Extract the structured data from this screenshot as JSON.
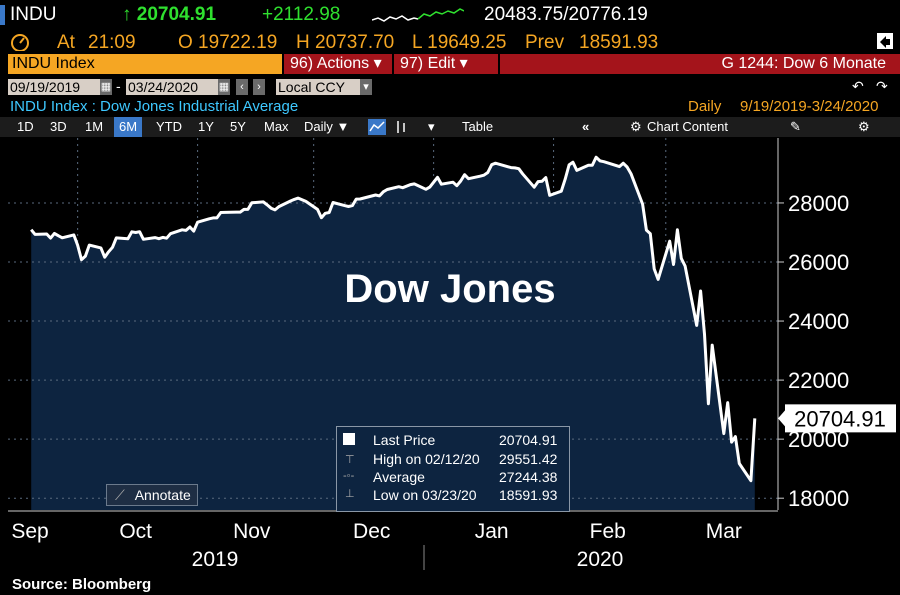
{
  "header": {
    "ticker": "INDU",
    "last": "↑ 20704.91",
    "change": "+2112.98",
    "range": "20483.75/20776.19",
    "at_label": "At",
    "time": "21:09",
    "open": "O 19722.19",
    "high": "H 20737.70",
    "low": "L 19649.25",
    "prev_label": "Prev",
    "prev": "18591.93"
  },
  "toolbar": {
    "index_label": "INDU Index",
    "actions": "96) Actions ▾",
    "edit": "97) Edit ▾",
    "page": "G 1244: Dow 6 Monate"
  },
  "dates": {
    "start": "09/19/2019",
    "sep": "-",
    "end": "03/24/2020",
    "currency": "Local CCY"
  },
  "info": {
    "title": "INDU Index : Dow Jones Industrial Average",
    "period_label": "Daily",
    "period_range": "9/19/2019-3/24/2020"
  },
  "tabs": [
    "1D",
    "3D",
    "1M",
    "6M",
    "YTD",
    "1Y",
    "5Y",
    "Max",
    "Daily ▼"
  ],
  "tab_table": "Table",
  "tab_chart_content": "Chart Content",
  "legend": {
    "rows": [
      {
        "label": "Last Price",
        "value": "20704.91"
      },
      {
        "label": "High on 02/12/20",
        "value": "29551.42"
      },
      {
        "label": "Average",
        "value": "27244.38"
      },
      {
        "label": "Low on 03/23/20",
        "value": "18591.93"
      }
    ]
  },
  "annotate_label": "Annotate",
  "source": "Source: Bloomberg",
  "colors": {
    "accent_orange": "#f5a623",
    "red_bar": "#a4141b",
    "chart_fill": "#0d2440",
    "positive": "#2fe02f",
    "info_cyan": "#3ec8ff"
  },
  "chart_data": {
    "type": "area",
    "title": "Dow Jones",
    "ylim": [
      17600,
      30200
    ],
    "yticks": [
      18000,
      20000,
      22000,
      24000,
      26000,
      28000
    ],
    "last_value_label": "20704.91",
    "x_months": [
      "Sep",
      "Oct",
      "Nov",
      "Dec",
      "Jan",
      "Feb",
      "Mar"
    ],
    "x_years": [
      "2019",
      "2020"
    ],
    "x": [
      "2019-09-19",
      "2019-09-20",
      "2019-09-23",
      "2019-09-24",
      "2019-09-25",
      "2019-09-26",
      "2019-09-27",
      "2019-09-30",
      "2019-10-01",
      "2019-10-02",
      "2019-10-03",
      "2019-10-04",
      "2019-10-07",
      "2019-10-08",
      "2019-10-09",
      "2019-10-10",
      "2019-10-11",
      "2019-10-14",
      "2019-10-15",
      "2019-10-16",
      "2019-10-17",
      "2019-10-18",
      "2019-10-21",
      "2019-10-22",
      "2019-10-23",
      "2019-10-24",
      "2019-10-25",
      "2019-10-28",
      "2019-10-29",
      "2019-10-30",
      "2019-10-31",
      "2019-11-01",
      "2019-11-04",
      "2019-11-05",
      "2019-11-06",
      "2019-11-07",
      "2019-11-08",
      "2019-11-11",
      "2019-11-12",
      "2019-11-13",
      "2019-11-14",
      "2019-11-15",
      "2019-11-18",
      "2019-11-19",
      "2019-11-20",
      "2019-11-21",
      "2019-11-22",
      "2019-11-25",
      "2019-11-26",
      "2019-11-27",
      "2019-11-29",
      "2019-12-02",
      "2019-12-03",
      "2019-12-04",
      "2019-12-05",
      "2019-12-06",
      "2019-12-09",
      "2019-12-10",
      "2019-12-11",
      "2019-12-12",
      "2019-12-13",
      "2019-12-16",
      "2019-12-17",
      "2019-12-18",
      "2019-12-19",
      "2019-12-20",
      "2019-12-23",
      "2019-12-24",
      "2019-12-26",
      "2019-12-27",
      "2019-12-30",
      "2019-12-31",
      "2020-01-02",
      "2020-01-03",
      "2020-01-06",
      "2020-01-07",
      "2020-01-08",
      "2020-01-09",
      "2020-01-10",
      "2020-01-13",
      "2020-01-14",
      "2020-01-15",
      "2020-01-16",
      "2020-01-17",
      "2020-01-21",
      "2020-01-22",
      "2020-01-23",
      "2020-01-24",
      "2020-01-27",
      "2020-01-28",
      "2020-01-29",
      "2020-01-30",
      "2020-01-31",
      "2020-02-03",
      "2020-02-04",
      "2020-02-05",
      "2020-02-06",
      "2020-02-07",
      "2020-02-10",
      "2020-02-11",
      "2020-02-12",
      "2020-02-13",
      "2020-02-14",
      "2020-02-18",
      "2020-02-19",
      "2020-02-20",
      "2020-02-21",
      "2020-02-24",
      "2020-02-25",
      "2020-02-26",
      "2020-02-27",
      "2020-02-28",
      "2020-03-02",
      "2020-03-03",
      "2020-03-04",
      "2020-03-05",
      "2020-03-06",
      "2020-03-09",
      "2020-03-10",
      "2020-03-11",
      "2020-03-12",
      "2020-03-13",
      "2020-03-16",
      "2020-03-17",
      "2020-03-18",
      "2020-03-19",
      "2020-03-20",
      "2020-03-23",
      "2020-03-24"
    ],
    "series": [
      {
        "values": [
          27094,
          26935,
          26950,
          26808,
          26970,
          26891,
          26820,
          26917,
          26573,
          26078,
          26201,
          26573,
          26478,
          26164,
          26347,
          26497,
          26817,
          26787,
          27024,
          26999,
          27025,
          26770,
          26828,
          26788,
          26834,
          26806,
          26958,
          27091,
          27071,
          27186,
          27046,
          27347,
          27462,
          27493,
          27493,
          27675,
          27681,
          27691,
          27691,
          27783,
          27782,
          28005,
          28036,
          27934,
          27821,
          27766,
          27876,
          28066,
          28122,
          28164,
          28051,
          27783,
          27502,
          27650,
          27677,
          28015,
          27909,
          27881,
          27911,
          28132,
          28135,
          28235,
          28268,
          28239,
          28377,
          28455,
          28551,
          28515,
          28621,
          28645,
          28462,
          28538,
          28868,
          28634,
          28703,
          28583,
          28745,
          28957,
          28823,
          28907,
          28939,
          29030,
          29297,
          29348,
          29196,
          29186,
          29160,
          28989,
          28535,
          28722,
          28734,
          28859,
          28256,
          28399,
          28807,
          29290,
          29379,
          29102,
          29276,
          29276,
          29551,
          29423,
          29398,
          29232,
          29348,
          29219,
          28992,
          27961,
          27081,
          26957,
          25766,
          25409,
          26703,
          25917,
          27091,
          26121,
          25864,
          23851,
          25018,
          23553,
          21200,
          23185,
          20189,
          21237,
          19899,
          20087,
          19174,
          18591,
          20704
        ]
      }
    ]
  }
}
